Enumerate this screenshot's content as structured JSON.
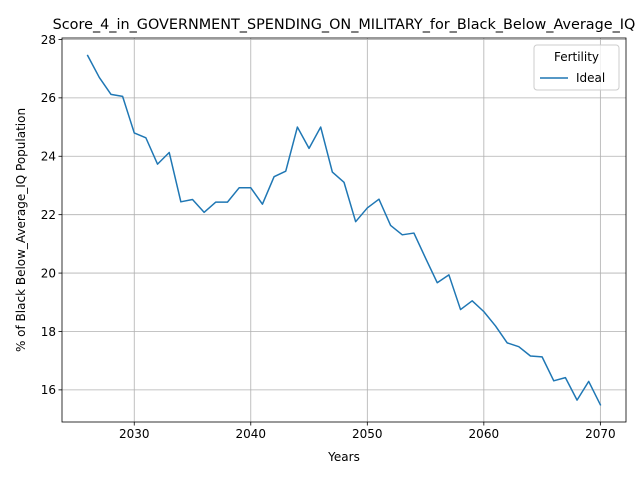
{
  "chart_data": {
    "type": "line",
    "title": "Score_4_in_GOVERNMENT_SPENDING_ON_MILITARY_for_Black_Below_Average_IQ",
    "xlabel": "Years",
    "ylabel": "% of Black Below_Average_IQ Population",
    "xlim": [
      2023.8,
      2072.2
    ],
    "ylim": [
      14.9,
      28.05
    ],
    "xticks": [
      2030,
      2040,
      2050,
      2060,
      2070
    ],
    "yticks": [
      16,
      18,
      20,
      22,
      24,
      26,
      28
    ],
    "grid": true,
    "legend": {
      "title": "Fertility",
      "placement": "upper right"
    },
    "colors": {
      "line": "#1f77b4",
      "grid": "#b0b0b0",
      "axis": "#000000",
      "background": "#ffffff"
    },
    "x": [
      2026,
      2027,
      2028,
      2029,
      2030,
      2031,
      2032,
      2033,
      2034,
      2035,
      2036,
      2037,
      2038,
      2039,
      2040,
      2041,
      2042,
      2043,
      2044,
      2045,
      2046,
      2047,
      2048,
      2049,
      2050,
      2051,
      2052,
      2053,
      2054,
      2055,
      2056,
      2057,
      2058,
      2059,
      2060,
      2061,
      2062,
      2063,
      2064,
      2065,
      2066,
      2067,
      2068,
      2069,
      2070
    ],
    "series": [
      {
        "name": "Ideal",
        "values": [
          27.45,
          26.7,
          26.12,
          26.05,
          24.8,
          24.63,
          23.73,
          24.13,
          22.44,
          22.52,
          22.08,
          22.43,
          22.43,
          22.92,
          22.92,
          22.36,
          23.3,
          23.49,
          25.0,
          24.27,
          25.0,
          23.46,
          23.11,
          21.76,
          22.23,
          22.53,
          21.63,
          21.31,
          21.37,
          20.51,
          19.67,
          19.94,
          18.75,
          19.05,
          18.68,
          18.19,
          17.61,
          17.48,
          17.16,
          17.13,
          16.31,
          16.42,
          15.65,
          16.29,
          15.49
        ]
      }
    ]
  }
}
